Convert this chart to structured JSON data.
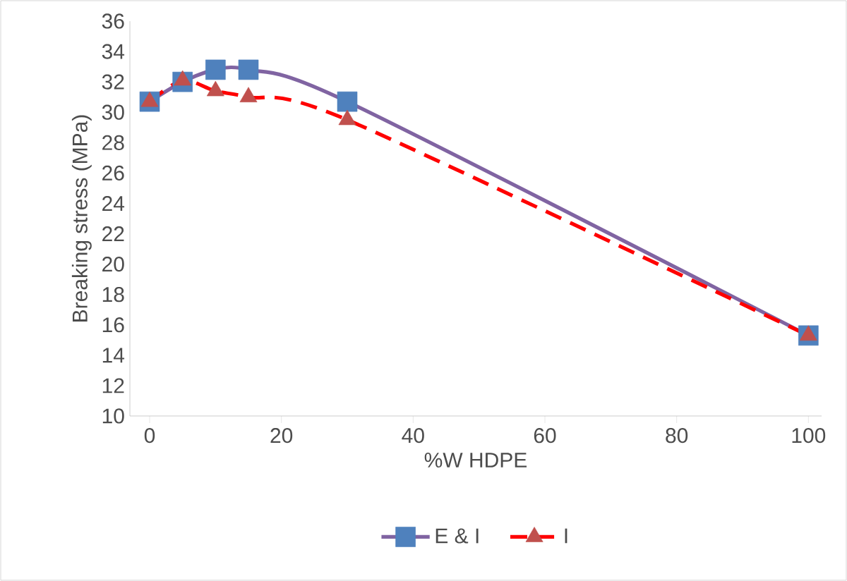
{
  "chart_data": {
    "type": "line",
    "xlabel": "%W HDPE",
    "ylabel": "Breaking stress (MPa)",
    "x": [
      0,
      5,
      10,
      15,
      30,
      100
    ],
    "series": [
      {
        "name": "E & I",
        "color": "#8064a2",
        "colors": [
          "#4f81bd",
          "#4f81bd",
          "#4f81bd",
          "#4f81bd",
          "#4f81bd",
          "#4f81bd"
        ],
        "marker": "square",
        "line_style": "solid",
        "values": [
          30.7,
          32.0,
          32.8,
          32.8,
          30.7,
          15.3
        ]
      },
      {
        "name": "I",
        "color": "#ff0000",
        "colors": [
          "#c0504d",
          "#c0504d",
          "#c0504d",
          "#c0504d",
          "#c0504d",
          "#c0504d"
        ],
        "marker": "triangle",
        "line_style": "dashed",
        "values": [
          30.7,
          32.1,
          31.4,
          31.0,
          29.5,
          15.3
        ]
      }
    ],
    "xlim": [
      -3,
      102
    ],
    "xticks": [
      0,
      20,
      40,
      60,
      80,
      100
    ],
    "ylim": [
      10,
      36
    ],
    "yticks": [
      10,
      12,
      14,
      16,
      18,
      20,
      22,
      24,
      26,
      28,
      30,
      32,
      34,
      36
    ],
    "grid": false,
    "legend": "bottom"
  }
}
